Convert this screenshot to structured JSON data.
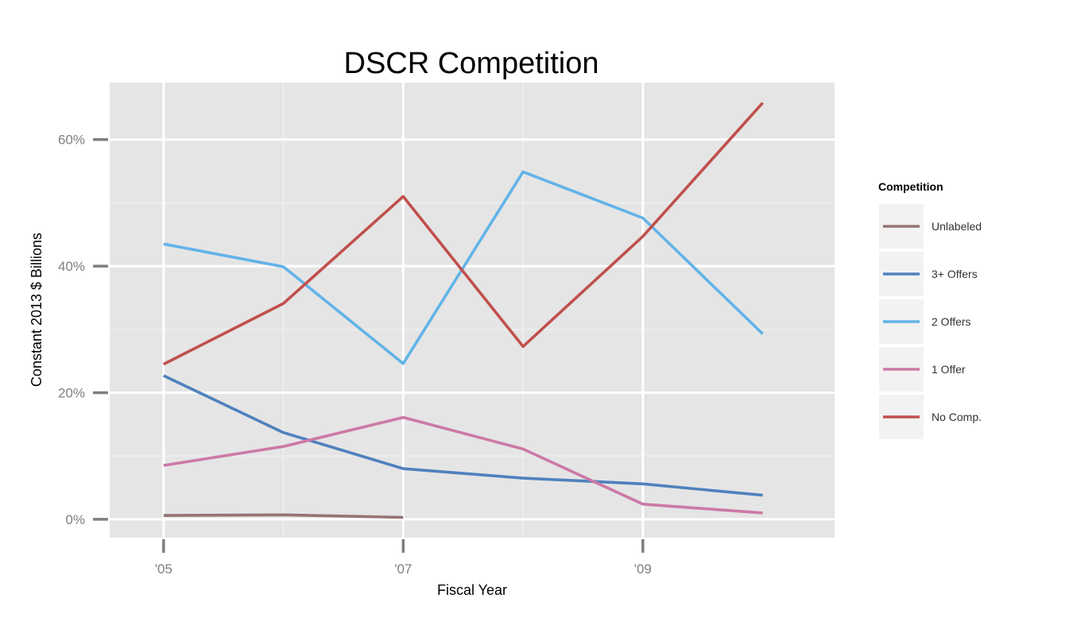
{
  "chart_data": {
    "type": "line",
    "title": "DSCR Competition",
    "xlabel": "Fiscal Year",
    "ylabel": "Constant 2013 $ Billions",
    "x": [
      2005,
      2006,
      2007,
      2008,
      2009,
      2010
    ],
    "xlim": [
      2004.55,
      2010.6
    ],
    "ylim": [
      -0.029,
      0.69
    ],
    "x_ticks": [
      2005,
      2007,
      2009
    ],
    "x_tick_labels": [
      "'05",
      "'07",
      "'09"
    ],
    "y_ticks": [
      0,
      0.2,
      0.4,
      0.6
    ],
    "y_tick_labels": [
      "0%",
      "20%",
      "40%",
      "60%"
    ],
    "grid": true,
    "legend": {
      "title": "Competition",
      "position": "right",
      "entries": [
        "Unlabeled",
        "3+ Offers",
        "2 Offers",
        "1 Offer",
        "No Comp."
      ]
    },
    "series": [
      {
        "name": "Unlabeled",
        "color": "#957474",
        "values": [
          0.006,
          0.007,
          0.003,
          null,
          null,
          null
        ]
      },
      {
        "name": "3+ Offers",
        "color": "#4f81bd",
        "values": [
          0.227,
          0.137,
          0.08,
          0.065,
          0.056,
          0.038
        ]
      },
      {
        "name": "2 Offers",
        "color": "#62b3e8",
        "values": [
          0.435,
          0.399,
          0.246,
          0.549,
          0.476,
          0.293
        ]
      },
      {
        "name": "1 Offer",
        "color": "#cc79a7",
        "values": [
          0.085,
          0.115,
          0.161,
          0.111,
          0.024,
          0.01
        ]
      },
      {
        "name": "No Comp.",
        "color": "#c0504d",
        "values": [
          0.245,
          0.341,
          0.51,
          0.273,
          0.447,
          0.658
        ]
      }
    ]
  }
}
